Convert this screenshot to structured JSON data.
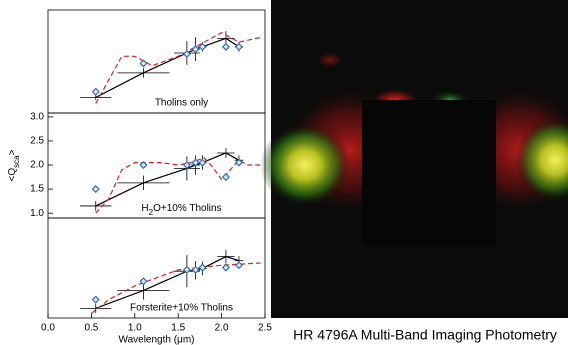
{
  "chart_data": [
    {
      "type": "line",
      "label": "Tholins only",
      "xlim": [
        0,
        2.5
      ],
      "ylim": [
        0.9,
        3.08
      ],
      "series": [
        {
          "color": "#000000",
          "x": [
            0.55,
            1.1,
            1.6,
            1.7,
            1.78,
            2.05,
            2.2
          ],
          "values": [
            1.23,
            1.75,
            2.17,
            2.25,
            2.3,
            2.48,
            2.3
          ],
          "xerr": [
            0.18,
            0.3,
            0.15,
            0.05,
            0.05,
            0.1,
            0.05
          ],
          "yerr": [
            0.05,
            0.1,
            0.25,
            0.25,
            0.1,
            0.15,
            0.1
          ]
        },
        {
          "color": "#d62020",
          "dash": true,
          "x": [
            0.55,
            0.7,
            0.85,
            1.0,
            1.2,
            1.5,
            1.8,
            2.0,
            2.2,
            2.45
          ],
          "values": [
            1.1,
            1.6,
            2.1,
            2.1,
            1.9,
            2.1,
            2.4,
            2.6,
            2.4,
            2.5
          ]
        },
        {
          "color": "#2f6db5",
          "marker": "diamond",
          "x": [
            0.55,
            1.1,
            1.6,
            1.7,
            1.78,
            2.05,
            2.2
          ],
          "values": [
            1.35,
            1.95,
            2.15,
            2.25,
            2.3,
            2.3,
            2.3
          ]
        }
      ]
    },
    {
      "type": "line",
      "label": {
        "main": "H",
        "sub": "2",
        "end": "O+10% Tholins"
      },
      "xlim": [
        0,
        2.5
      ],
      "ylim": [
        0.9,
        3.08
      ],
      "ylabel": {
        "main": "<Q",
        "sub": "sca",
        "end": ">"
      },
      "yticks": [
        {
          "value": 1,
          "label": "1.0"
        },
        1.5,
        {
          "value": 2,
          "label": "2.0"
        },
        2.5,
        {
          "value": 3,
          "label": "3.0"
        }
      ],
      "series": [
        {
          "color": "#000000",
          "x": [
            0.55,
            1.1,
            1.6,
            1.7,
            1.78,
            2.05,
            2.2
          ],
          "values": [
            1.15,
            1.63,
            1.93,
            2.0,
            2.05,
            2.25,
            2.1
          ],
          "xerr": [
            0.18,
            0.3,
            0.15,
            0.05,
            0.05,
            0.1,
            0.05
          ],
          "yerr": [
            0.1,
            0.15,
            0.25,
            0.2,
            0.15,
            0.1,
            0.1
          ]
        },
        {
          "color": "#d62020",
          "dash": true,
          "x": [
            0.55,
            0.7,
            0.85,
            1.0,
            1.3,
            1.5,
            1.65,
            1.8,
            1.9,
            2.0,
            2.1,
            2.2,
            2.3,
            2.45
          ],
          "values": [
            1.0,
            1.3,
            1.9,
            2.05,
            2.05,
            2.0,
            2.05,
            2.15,
            1.95,
            1.7,
            1.9,
            2.1,
            2.0,
            2.0
          ]
        },
        {
          "color": "#2f6db5",
          "marker": "diamond",
          "x": [
            0.55,
            1.1,
            1.6,
            1.7,
            1.78,
            2.05,
            2.2
          ],
          "values": [
            1.5,
            2.0,
            2.0,
            2.05,
            2.05,
            1.75,
            2.05
          ]
        }
      ]
    },
    {
      "type": "line",
      "label": "Forsterite+10% Tholins",
      "xlim": [
        0,
        2.5
      ],
      "ylim": [
        0.9,
        3.08
      ],
      "xlabel": "Wavelength (μm)",
      "xticks": [
        {
          "value": 0,
          "label": "0.0"
        },
        0.5,
        {
          "value": 1,
          "label": "1.0"
        },
        1.5,
        {
          "value": 2,
          "label": "2.0"
        },
        2.5
      ],
      "series": [
        {
          "color": "#000000",
          "x": [
            0.55,
            1.1,
            1.6,
            1.7,
            1.78,
            2.05,
            2.2
          ],
          "values": [
            1.11,
            1.5,
            1.92,
            1.94,
            1.98,
            2.24,
            2.15
          ],
          "xerr": [
            0.18,
            0.3,
            0.15,
            0.05,
            0.05,
            0.1,
            0.05
          ],
          "yerr": [
            0.1,
            0.2,
            0.35,
            0.2,
            0.15,
            0.15,
            0.1
          ]
        },
        {
          "color": "#d62020",
          "dash": true,
          "x": [
            0.5,
            0.7,
            1.0,
            1.5,
            2.0,
            2.45
          ],
          "values": [
            1.0,
            1.3,
            1.6,
            1.95,
            2.05,
            2.1
          ]
        },
        {
          "color": "#2f6db5",
          "marker": "diamond",
          "x": [
            0.55,
            1.1,
            1.6,
            1.7,
            1.78,
            2.05,
            2.2
          ],
          "values": [
            1.3,
            1.7,
            1.95,
            1.95,
            2.0,
            2.0,
            2.05
          ]
        }
      ]
    }
  ],
  "image": {
    "caption": "HR 4796A Multi-Band Imaging Photometry"
  }
}
